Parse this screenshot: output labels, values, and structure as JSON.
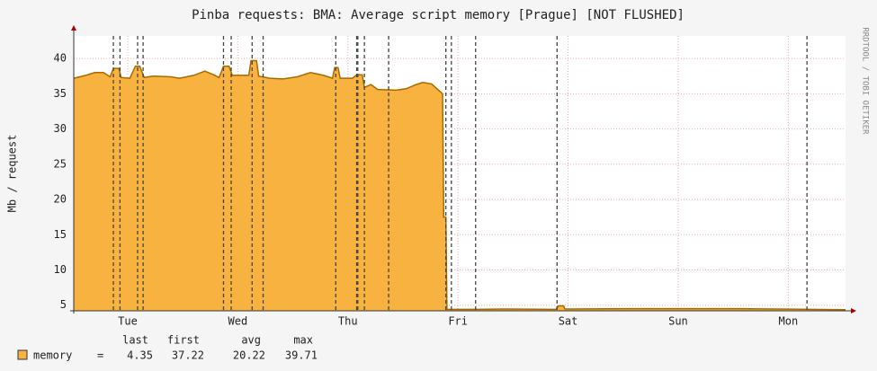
{
  "chart_data": {
    "type": "area",
    "title": "Pinba requests: BMA: Average script memory [Prague] [NOT FLUSHED]",
    "ylabel": "Mb / request",
    "watermark": "RRDTOOL / TOBI OETIKER",
    "xlim": [
      -0.49,
      6.52
    ],
    "xticks": [
      {
        "value": 0,
        "label": "Tue"
      },
      {
        "value": 1,
        "label": "Wed"
      },
      {
        "value": 2,
        "label": "Thu"
      },
      {
        "value": 3,
        "label": "Fri"
      },
      {
        "value": 4,
        "label": "Sat"
      },
      {
        "value": 5,
        "label": "Sun"
      },
      {
        "value": 6,
        "label": "Mon"
      }
    ],
    "ylim": [
      4.2,
      43.2
    ],
    "yticks": [
      5,
      10,
      15,
      20,
      25,
      30,
      35,
      40
    ],
    "grid": true,
    "vrules": [
      -0.13,
      -0.07,
      0.09,
      0.14,
      0.87,
      0.94,
      1.13,
      1.23,
      1.89,
      2.08,
      2.09,
      2.15,
      2.37,
      2.89,
      2.94,
      3.16,
      3.9,
      6.17
    ],
    "series": [
      {
        "name": "memory",
        "color": "#f7b23f",
        "line_color": "#a86a00",
        "x": [
          -0.49,
          -0.38,
          -0.3,
          -0.22,
          -0.16,
          -0.13,
          -0.08,
          -0.06,
          0.02,
          0.07,
          0.11,
          0.15,
          0.23,
          0.39,
          0.47,
          0.6,
          0.7,
          0.78,
          0.83,
          0.87,
          0.92,
          0.95,
          1.1,
          1.12,
          1.17,
          1.19,
          1.29,
          1.41,
          1.54,
          1.66,
          1.78,
          1.86,
          1.88,
          1.91,
          1.93,
          2.04,
          2.08,
          2.13,
          2.15,
          2.21,
          2.27,
          2.44,
          2.53,
          2.62,
          2.68,
          2.76,
          2.83,
          2.86,
          2.87,
          2.89,
          2.9,
          3.17,
          3.42,
          3.89,
          3.91,
          3.96,
          3.97,
          4.56,
          5.54,
          6.52
        ],
        "values": [
          37.2,
          37.6,
          38.0,
          38.0,
          37.4,
          38.6,
          38.6,
          37.3,
          37.2,
          38.9,
          38.9,
          37.3,
          37.5,
          37.4,
          37.2,
          37.6,
          38.2,
          37.7,
          37.3,
          38.9,
          38.9,
          37.6,
          37.6,
          39.7,
          39.7,
          37.5,
          37.2,
          37.1,
          37.4,
          38.0,
          37.6,
          37.2,
          38.7,
          38.7,
          37.2,
          37.2,
          37.7,
          37.7,
          35.9,
          36.3,
          35.6,
          35.5,
          35.7,
          36.3,
          36.6,
          36.4,
          35.4,
          35.0,
          17.5,
          17.5,
          4.4,
          4.4,
          4.45,
          4.4,
          4.9,
          4.9,
          4.45,
          4.5,
          4.5,
          4.35
        ]
      }
    ],
    "legend": {
      "separator": "=",
      "headers": [
        "last",
        "first",
        "avg",
        "max"
      ],
      "values": [
        4.35,
        37.22,
        20.22,
        39.71
      ]
    }
  }
}
